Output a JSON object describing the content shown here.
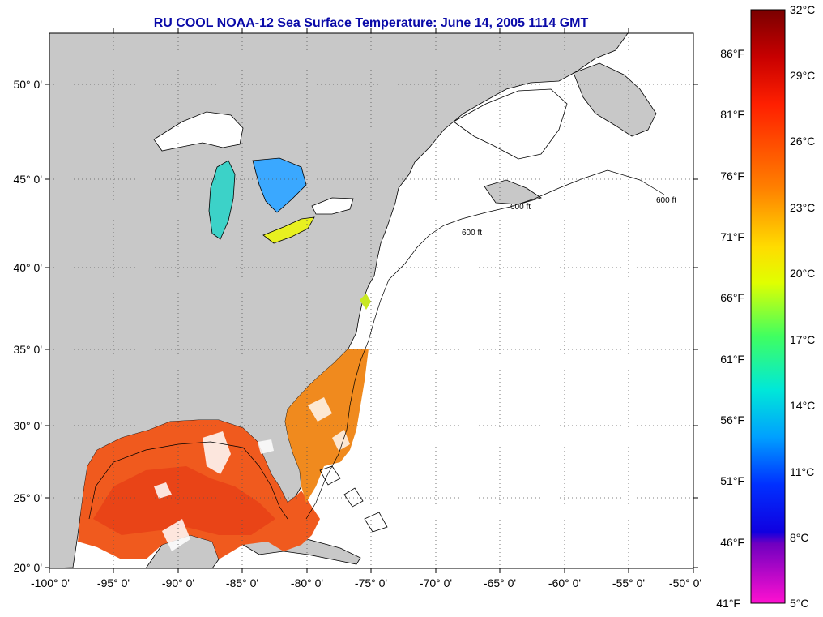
{
  "title": "RU COOL  NOAA-12  Sea Surface Temperature:  June 14, 2005 1114 GMT",
  "lat_labels": [
    "50° 0'",
    "45° 0'",
    "40° 0'",
    "35° 0'",
    "30° 0'",
    "25° 0'",
    "20° 0'"
  ],
  "lon_labels": [
    "-100° 0'",
    "-95° 0'",
    "-90° 0'",
    "-85° 0'",
    "-80° 0'",
    "-75° 0'",
    "-70° 0'",
    "-65° 0'",
    "-60° 0'",
    "-55° 0'",
    "-50° 0'"
  ],
  "isobath_label": "600 ft",
  "colorbar": {
    "celsius": [
      "32°C",
      "29°C",
      "26°C",
      "23°C",
      "20°C",
      "17°C",
      "14°C",
      "11°C",
      "8°C",
      "5°C"
    ],
    "fahrenheit": [
      "86°F",
      "81°F",
      "76°F",
      "71°F",
      "66°F",
      "61°F",
      "56°F",
      "51°F",
      "46°F",
      "41°F"
    ]
  },
  "colors": {
    "land": "#c8c8c8",
    "ocean_no_data": "#ffffff",
    "title": "#0a0aa8",
    "warm_sst": "#f05a1e"
  }
}
